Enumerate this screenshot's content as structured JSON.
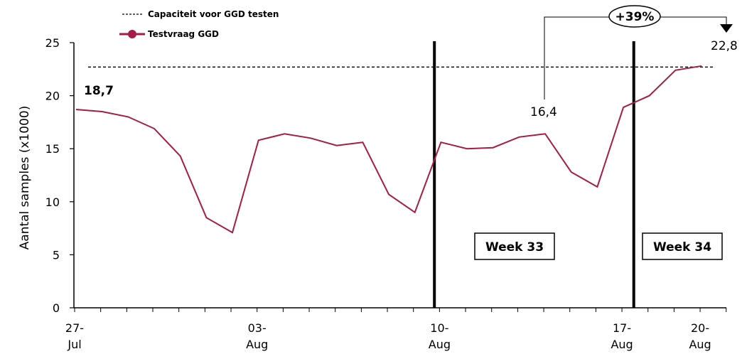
{
  "chart_data": {
    "type": "line",
    "ylabel": "Aantal samples (x1000)",
    "ylim": [
      0,
      25
    ],
    "yticks": [
      "0",
      "5",
      "10",
      "15",
      "20",
      "25"
    ],
    "xtick_labels": [
      {
        "line1": "27-",
        "line2": "Jul",
        "day": 0
      },
      {
        "line1": "03-",
        "line2": "Aug",
        "day": 7
      },
      {
        "line1": "10-",
        "line2": "Aug",
        "day": 14
      },
      {
        "line1": "17-",
        "line2": "Aug",
        "day": 21
      },
      {
        "line1": "20-",
        "line2": "Aug",
        "day": 24
      }
    ],
    "x": [
      "27-Jul",
      "28-Jul",
      "29-Jul",
      "30-Jul",
      "31-Jul",
      "01-Aug",
      "02-Aug",
      "03-Aug",
      "04-Aug",
      "05-Aug",
      "06-Aug",
      "07-Aug",
      "08-Aug",
      "09-Aug",
      "10-Aug",
      "11-Aug",
      "12-Aug",
      "13-Aug",
      "14-Aug",
      "15-Aug",
      "16-Aug",
      "17-Aug",
      "18-Aug",
      "19-Aug",
      "20-Aug"
    ],
    "series": [
      {
        "name": "Testvraag GGD",
        "color": "#a51c45",
        "values": [
          18.7,
          18.5,
          18.0,
          16.9,
          14.3,
          8.5,
          7.1,
          15.8,
          16.4,
          16.0,
          15.3,
          15.6,
          10.7,
          9.0,
          15.6,
          15.0,
          15.1,
          16.1,
          16.4,
          12.8,
          11.4,
          18.9,
          20.0,
          22.4,
          22.8
        ]
      }
    ],
    "reference_line": {
      "name": "Capaciteit voor GGD testen",
      "value": 22.7,
      "style": "dashed",
      "color": "#000000"
    },
    "week_dividers": [
      13.75,
      21.4
    ],
    "week_labels": [
      {
        "text": "Week 33"
      },
      {
        "text": "Week 34"
      }
    ],
    "annotations": {
      "start_value": "18,7",
      "mid_value": "16,4",
      "end_value": "22,8",
      "change_label": "+39%"
    },
    "legend": {
      "placement": "top-left"
    }
  }
}
